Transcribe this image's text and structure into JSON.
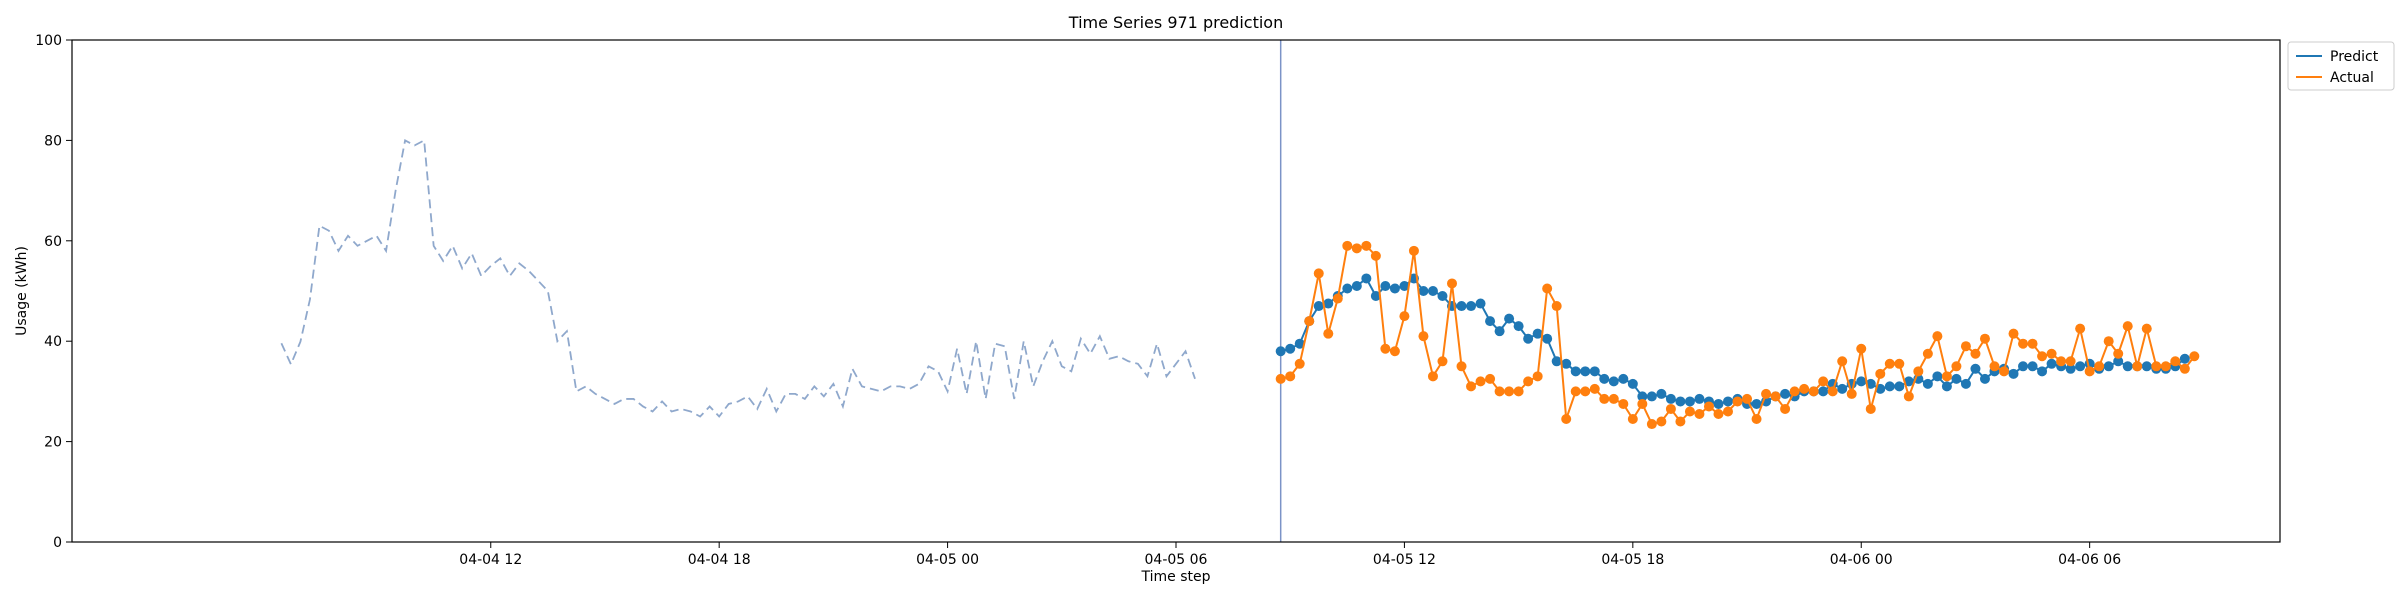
{
  "chart_data": {
    "type": "line",
    "title": "Time Series 971 prediction",
    "xlabel": "Time step",
    "ylabel": "Usage (kWh)",
    "ylim": [
      0,
      100
    ],
    "xlim": [
      "2025-04-04 01:00",
      "2025-04-06 11:00"
    ],
    "yticks": [
      0,
      20,
      40,
      60,
      80,
      100
    ],
    "xticks": [
      {
        "t": "2025-04-04 12:00",
        "label": "04-04 12"
      },
      {
        "t": "2025-04-04 18:00",
        "label": "04-04 18"
      },
      {
        "t": "2025-04-05 00:00",
        "label": "04-05 00"
      },
      {
        "t": "2025-04-05 06:00",
        "label": "04-05 06"
      },
      {
        "t": "2025-04-05 12:00",
        "label": "04-05 12"
      },
      {
        "t": "2025-04-05 18:00",
        "label": "04-05 18"
      },
      {
        "t": "2025-04-06 00:00",
        "label": "04-06 00"
      },
      {
        "t": "2025-04-06 06:00",
        "label": "04-06 06"
      }
    ],
    "grid": false,
    "legend_position": "top-right, outside plot",
    "x_start": "2025-04-04 06:30",
    "x_step_minutes": 15,
    "forecast_start": "2025-04-05 08:45",
    "forecast_line_color": "#7b93c7",
    "series": [
      {
        "key": "history",
        "style": "dashed",
        "color": "#8fa8cc",
        "start": "2025-04-04 06:30",
        "values": [
          39.6,
          35.4,
          39.9,
          48.3,
          63.0,
          62.0,
          58.0,
          61.0,
          59.0,
          60.0,
          61.0,
          58.0,
          70.0,
          80.0,
          79.0,
          80.0,
          59.0,
          56.0,
          59.0,
          54.5,
          57.5,
          53.0,
          55.0,
          56.5,
          53.0,
          55.5,
          54.0,
          52.0,
          50.0,
          40.0,
          42.0,
          30.0,
          31.0,
          29.5,
          28.5,
          27.5,
          28.5,
          28.5,
          27.0,
          26.0,
          28.0,
          26.0,
          26.5,
          26.0,
          25.0,
          27.0,
          25.0,
          27.5,
          28.0,
          29.0,
          26.5,
          30.5,
          26.0,
          29.5,
          29.5,
          28.5,
          31.0,
          29.0,
          31.5,
          27.0,
          34.5,
          31.0,
          30.5,
          30.0,
          31.0,
          31.0,
          30.5,
          31.5,
          35.0,
          34.0,
          30.0,
          38.5,
          29.5,
          40.0,
          28.5,
          39.5,
          39.0,
          28.5,
          40.0,
          31.0,
          36.0,
          40.0,
          35.0,
          34.0,
          40.5,
          37.5,
          41.0,
          36.5,
          37.0,
          36.0,
          35.5,
          33.0,
          39.5,
          33.0,
          35.5,
          38.0,
          32.5
        ]
      },
      {
        "key": "predict",
        "name": "Predict",
        "color": "#1f77b4",
        "start": "2025-04-05 08:45",
        "values": [
          38.0,
          38.5,
          39.5,
          44.0,
          47.0,
          47.5,
          49.0,
          50.5,
          51.0,
          52.5,
          49.0,
          51.0,
          50.5,
          51.0,
          52.5,
          50.0,
          50.0,
          49.0,
          47.0,
          47.0,
          47.0,
          47.5,
          44.0,
          42.0,
          44.5,
          43.0,
          40.5,
          41.5,
          40.5,
          36.0,
          35.5,
          34.0,
          34.0,
          34.0,
          32.5,
          32.0,
          32.5,
          31.5,
          29.0,
          29.0,
          29.5,
          28.5,
          28.0,
          28.0,
          28.5,
          28.0,
          27.5,
          28.0,
          28.5,
          27.5,
          27.5,
          28.0,
          29.0,
          29.5,
          29.0,
          30.0,
          30.0,
          30.0,
          31.5,
          30.5,
          31.5,
          32.0,
          31.5,
          30.5,
          31.0,
          31.0,
          32.0,
          32.5,
          31.5,
          33.0,
          31.0,
          32.5,
          31.5,
          34.5,
          32.5,
          34.0,
          34.5,
          33.5,
          35.0,
          35.0,
          34.0,
          35.5,
          35.0,
          34.5,
          35.0,
          35.5,
          34.5,
          35.0,
          36.0,
          35.0,
          35.0,
          35.0,
          34.5,
          34.5,
          35.0,
          36.5
        ]
      },
      {
        "key": "actual",
        "name": "Actual",
        "color": "#ff7f0e",
        "start": "2025-04-05 08:45",
        "values": [
          32.5,
          33.0,
          35.5,
          44.0,
          53.5,
          41.5,
          48.5,
          59.0,
          58.5,
          59.0,
          57.0,
          38.5,
          38.0,
          45.0,
          58.0,
          41.0,
          33.0,
          36.0,
          51.5,
          35.0,
          31.0,
          32.0,
          32.5,
          30.0,
          30.0,
          30.0,
          32.0,
          33.0,
          50.5,
          47.0,
          24.5,
          30.0,
          30.0,
          30.5,
          28.5,
          28.5,
          27.5,
          24.5,
          27.5,
          23.5,
          24.0,
          26.5,
          24.0,
          26.0,
          25.5,
          27.0,
          25.5,
          26.0,
          28.0,
          28.5,
          24.5,
          29.5,
          29.0,
          26.5,
          30.0,
          30.5,
          30.0,
          32.0,
          30.0,
          36.0,
          29.5,
          38.5,
          26.5,
          33.5,
          35.5,
          35.5,
          29.0,
          34.0,
          37.5,
          41.0,
          33.0,
          35.0,
          39.0,
          37.5,
          40.5,
          35.0,
          34.0,
          41.5,
          39.5,
          39.5,
          37.0,
          37.5,
          36.0,
          36.0,
          42.5,
          34.0,
          35.0,
          40.0,
          37.5,
          43.0,
          35.0,
          42.5,
          35.0,
          35.0,
          36.0,
          34.5,
          37.0
        ]
      }
    ]
  }
}
